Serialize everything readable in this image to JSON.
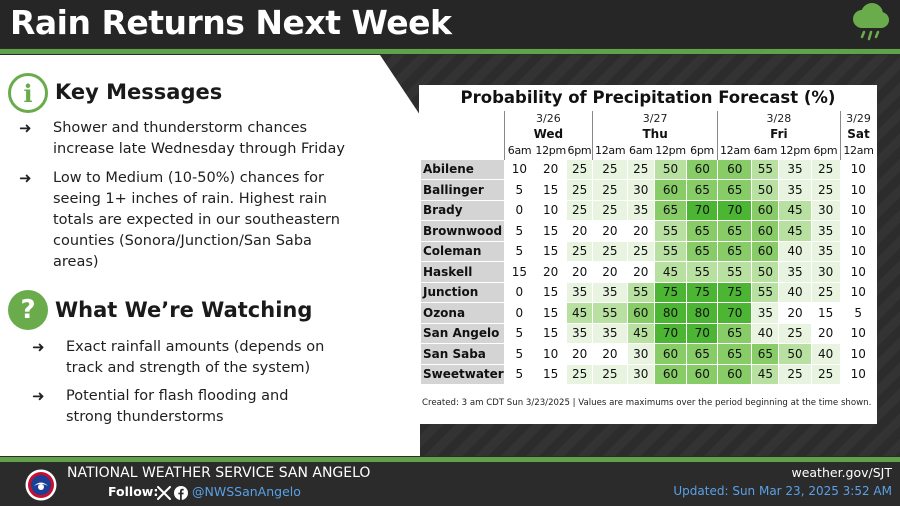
{
  "header": {
    "title": "Rain Returns Next Week",
    "icon": "rain-cloud-icon"
  },
  "colors": {
    "accent": "#5fa247",
    "link": "#5aa0e6",
    "cell_scale": [
      "#ffffff",
      "#e8f4e0",
      "#b8e0a0",
      "#88cc68",
      "#4db534"
    ]
  },
  "key_messages": {
    "title": "Key Messages",
    "icon": "info-icon",
    "bullets": [
      {
        "line1": "Shower and thunderstorm chances",
        "line2": "increase late Wednesday through Friday"
      },
      {
        "line1": "Low to Medium (10-50%) chances for",
        "line2": "seeing 1+ inches of rain. Highest rain",
        "line3": "totals are expected in our southeastern",
        "line4": "counties (Sonora/Junction/San Saba",
        "line5": "areas)"
      }
    ]
  },
  "watching": {
    "title": "What We’re Watching",
    "icon": "question-icon",
    "bullets": [
      {
        "line1": "Exact rainfall amounts (depends on",
        "line2": "track and strength of the system)"
      },
      {
        "line1": "Potential for flash flooding and",
        "line2": "strong thunderstorms"
      }
    ]
  },
  "chart_data": {
    "type": "table",
    "title": "Probability of Precipitation Forecast (%)",
    "days": [
      {
        "date": "3/26",
        "day": "Wed",
        "span": 3
      },
      {
        "date": "3/27",
        "day": "Thu",
        "span": 4
      },
      {
        "date": "3/28",
        "day": "Fri",
        "span": 4
      },
      {
        "date": "3/29",
        "day": "Sat",
        "span": 1
      }
    ],
    "times": [
      "6am",
      "12pm",
      "6pm",
      "12am",
      "6am",
      "12pm",
      "6pm",
      "12am",
      "6am",
      "12pm",
      "6pm",
      "12am"
    ],
    "rows": [
      {
        "location": "Abilene",
        "values": [
          10,
          20,
          25,
          25,
          25,
          50,
          60,
          60,
          55,
          35,
          25,
          10
        ]
      },
      {
        "location": "Ballinger",
        "values": [
          5,
          15,
          25,
          25,
          30,
          60,
          65,
          65,
          50,
          35,
          25,
          10
        ]
      },
      {
        "location": "Brady",
        "values": [
          0,
          10,
          25,
          25,
          35,
          65,
          70,
          70,
          60,
          45,
          30,
          10
        ]
      },
      {
        "location": "Brownwood",
        "values": [
          5,
          15,
          20,
          20,
          20,
          55,
          65,
          65,
          60,
          45,
          35,
          10
        ]
      },
      {
        "location": "Coleman",
        "values": [
          5,
          15,
          25,
          25,
          25,
          55,
          65,
          65,
          60,
          40,
          35,
          10
        ]
      },
      {
        "location": "Haskell",
        "values": [
          15,
          20,
          20,
          20,
          20,
          45,
          55,
          55,
          50,
          35,
          30,
          10
        ]
      },
      {
        "location": "Junction",
        "values": [
          0,
          15,
          35,
          35,
          55,
          75,
          75,
          75,
          55,
          40,
          25,
          10
        ]
      },
      {
        "location": "Ozona",
        "values": [
          0,
          15,
          45,
          55,
          60,
          80,
          80,
          70,
          35,
          20,
          15,
          5
        ]
      },
      {
        "location": "San Angelo",
        "values": [
          5,
          15,
          35,
          35,
          45,
          70,
          70,
          65,
          40,
          25,
          20,
          10
        ]
      },
      {
        "location": "San Saba",
        "values": [
          5,
          10,
          20,
          20,
          30,
          60,
          65,
          65,
          65,
          50,
          40,
          10
        ]
      },
      {
        "location": "Sweetwater",
        "values": [
          5,
          15,
          25,
          25,
          30,
          60,
          60,
          60,
          45,
          25,
          25,
          10
        ]
      }
    ],
    "footnote": "Created: 3 am CDT Sun 3/23/2025  |  Values are maximums over the period beginning at the time shown."
  },
  "footer": {
    "org": "NATIONAL WEATHER SERVICE SAN ANGELO",
    "follow": "Follow:",
    "social_icons": [
      "x-icon",
      "facebook-icon"
    ],
    "handle": "@NWSSanAngelo",
    "site": "weather.gov/SJT",
    "updated": "Updated: Sun Mar 23, 2025 3:52 AM"
  }
}
